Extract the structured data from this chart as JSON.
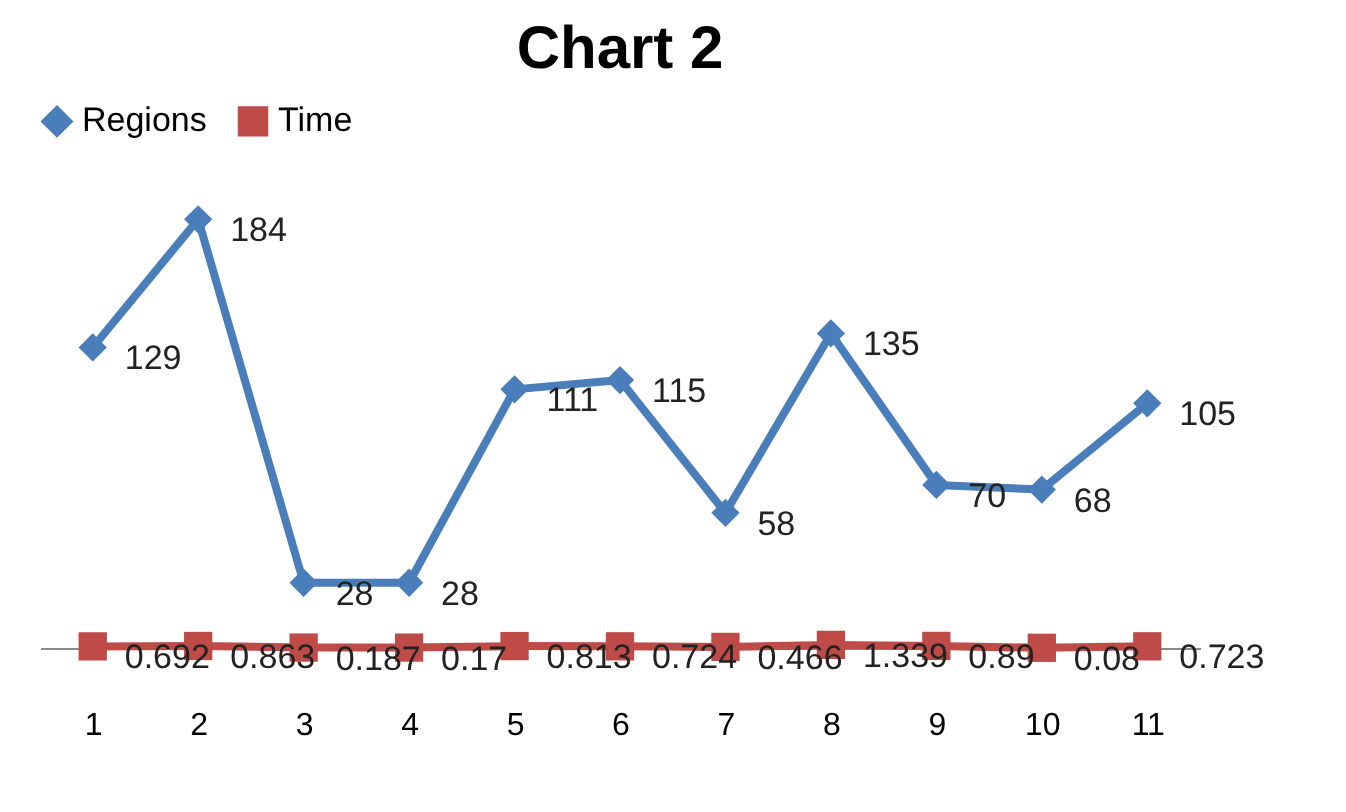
{
  "chart_data": {
    "type": "line",
    "title": "Chart 2",
    "categories": [
      "1",
      "2",
      "3",
      "4",
      "5",
      "6",
      "7",
      "8",
      "9",
      "10",
      "11"
    ],
    "series": [
      {
        "name": "Regions",
        "color": "#4a7ebb",
        "marker": "diamond",
        "values": [
          129,
          184,
          28,
          28,
          111,
          115,
          58,
          135,
          70,
          68,
          105
        ]
      },
      {
        "name": "Time",
        "color": "#be4b48",
        "marker": "square",
        "values": [
          0.692,
          0.863,
          0.187,
          0.17,
          0.813,
          0.724,
          0.466,
          1.339,
          0.89,
          0.08,
          0.723
        ]
      }
    ],
    "data_labels": true,
    "legend": "top",
    "grid": false
  }
}
